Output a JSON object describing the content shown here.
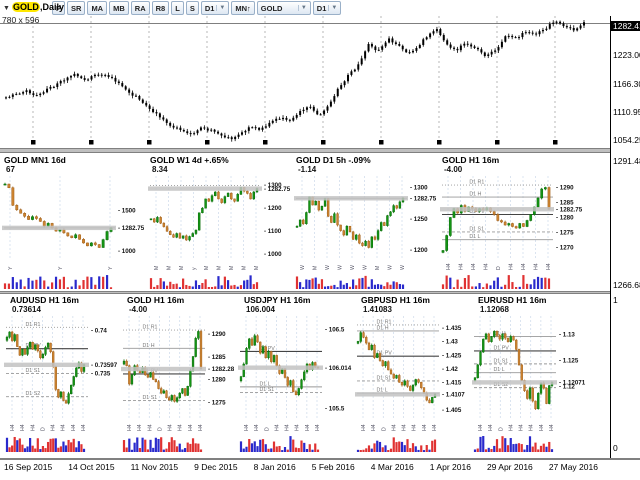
{
  "window": {
    "size_label": "780 x 596",
    "symbol_prefix": "▼",
    "symbol_label_hl": "GOLD",
    "symbol_label_rest": ",Daily"
  },
  "toolbar": {
    "buttons": [
      "P",
      "SR",
      "MA",
      "MB",
      "RA",
      "R8",
      "L",
      "S"
    ],
    "combos": [
      {
        "label": "D1",
        "arrow": true
      },
      {
        "label": "MN↑",
        "arrow": false
      },
      {
        "label": "GOLD",
        "arrow": true,
        "wide": true
      },
      {
        "label": "D1",
        "arrow": true
      }
    ]
  },
  "colors": {
    "up": "#149414",
    "up_stroke": "#0a6e0a",
    "down": "#cd8430",
    "down_stroke": "#a3621c",
    "vol_red": "#e03232",
    "vol_blue": "#2929cc",
    "grid": "#ccd9ea",
    "level": "#999999",
    "level_dark": "#444444",
    "band": "#c2c2c2",
    "highlight": "#ffe800",
    "bar": "#000000"
  },
  "main_chart": {
    "range": [
      1043,
      1293
    ],
    "current_label": "1282.41",
    "current_price": 1282.41,
    "scale_labels": [
      {
        "t": "1223.00",
        "p": 1223
      },
      {
        "t": "1166.30",
        "p": 1166.3
      },
      {
        "t": "1110.95",
        "p": 1110.95
      },
      {
        "t": "1054.25",
        "p": 1054.25
      }
    ],
    "closes": [
      1135,
      1142,
      1150,
      1138,
      1148,
      1160,
      1172,
      1180,
      1168,
      1178,
      1182,
      1170,
      1155,
      1140,
      1125,
      1108,
      1090,
      1078,
      1068,
      1062,
      1075,
      1070,
      1058,
      1054,
      1066,
      1078,
      1072,
      1085,
      1095,
      1090,
      1108,
      1118,
      1098,
      1120,
      1155,
      1180,
      1200,
      1240,
      1228,
      1252,
      1238,
      1222,
      1235,
      1258,
      1270,
      1240,
      1230,
      1244,
      1232,
      1218,
      1228,
      1260,
      1252,
      1266,
      1258,
      1272,
      1286,
      1276,
      1270,
      1282.41
    ]
  },
  "scale_extra": [
    "1291.487",
    "1266.683",
    "1",
    "0"
  ],
  "row1": [
    {
      "name": "gold-mn1",
      "title": "GOLD MN1 16d",
      "value": "67",
      "seed": 1,
      "range": [
        950,
        1870
      ],
      "closes": [
        1820,
        1775,
        1560,
        1505,
        1462,
        1425,
        1385,
        1420,
        1398,
        1362,
        1302,
        1338,
        1282,
        1244,
        1262,
        1222,
        1184,
        1162,
        1198,
        1142,
        1098,
        1062,
        1098,
        1078,
        1042,
        1138,
        1238,
        1283
      ],
      "levels": [
        {
          "label": "",
          "p": 1282.75,
          "style": "solid"
        }
      ],
      "price_labels": [
        {
          "t": "1500",
          "p": 1500
        },
        {
          "t": "1282.75",
          "p": 1282.75,
          "cur": true
        },
        {
          "t": "1000",
          "p": 1000
        }
      ],
      "xticks": [
        "Y",
        "Y",
        "Y"
      ]
    },
    {
      "name": "gold-w1",
      "title": "GOLD W1 4d +.65%",
      "value": "8.34",
      "seed": 2,
      "range": [
        995,
        1320
      ],
      "closes": [
        1152,
        1138,
        1158,
        1133,
        1118,
        1098,
        1083,
        1072,
        1088,
        1068,
        1078,
        1060,
        1075,
        1088,
        1103,
        1178,
        1198,
        1238,
        1228,
        1252,
        1268,
        1238,
        1222,
        1248,
        1263,
        1238,
        1228,
        1258,
        1288,
        1272,
        1262,
        1238,
        1268,
        1283
      ],
      "levels": [
        {
          "label": "",
          "p": 1296,
          "style": "dotted"
        }
      ],
      "price_labels": [
        {
          "t": "1300",
          "p": 1300
        },
        {
          "t": "1282.75",
          "p": 1282.75,
          "cur": true
        },
        {
          "t": "1200",
          "p": 1200
        },
        {
          "t": "1100",
          "p": 1100
        },
        {
          "t": "1000",
          "p": 1000
        }
      ],
      "xticks": [
        "M",
        "M",
        "M",
        "y",
        "M",
        "M",
        "M",
        "M",
        "M"
      ]
    },
    {
      "name": "gold-d1",
      "title": "GOLD D1 5h -.09%",
      "value": "-1.14",
      "seed": 3,
      "range": [
        1192,
        1312
      ],
      "closes": [
        1238,
        1248,
        1242,
        1260,
        1285,
        1272,
        1278,
        1264,
        1270,
        1282,
        1254,
        1244,
        1258,
        1240,
        1231,
        1224,
        1238,
        1229,
        1217,
        1224,
        1211,
        1207,
        1214,
        1204,
        1221,
        1217,
        1231,
        1244,
        1239,
        1255,
        1261,
        1271,
        1267,
        1277,
        1283
      ],
      "levels": [
        {
          "label": "",
          "p": 1282.75,
          "style": "solid"
        }
      ],
      "price_labels": [
        {
          "t": "1300",
          "p": 1300
        },
        {
          "t": "1282.75",
          "p": 1282.75,
          "cur": true
        },
        {
          "t": "1250",
          "p": 1250
        },
        {
          "t": "1200",
          "p": 1200
        }
      ],
      "xticks": [
        "W",
        "M",
        "W",
        "W",
        "W",
        "W",
        "M",
        "W",
        "W"
      ]
    },
    {
      "name": "gold-h1",
      "title": "GOLD H1 16m",
      "value": "-4.00",
      "seed": 4,
      "range": [
        1267.5,
        1292.5
      ],
      "closes": [
        1269,
        1274,
        1280,
        1283,
        1281.5,
        1284,
        1282,
        1283.5,
        1283,
        1282,
        1283,
        1282.5,
        1283.2,
        1282,
        1281,
        1279,
        1278.5,
        1277.5,
        1278,
        1277,
        1276.5,
        1278,
        1277,
        1279,
        1281,
        1283.5,
        1286.5,
        1289.5,
        1290,
        1282.75
      ],
      "levels": [
        {
          "label": "D1 R1",
          "p": 1290.8,
          "style": "dotted"
        },
        {
          "label": "D1 H",
          "p": 1286.8,
          "style": "solid"
        },
        {
          "label": "D1 PV",
          "p": 1281.0,
          "style": "solid",
          "dark": true
        },
        {
          "label": "D1 S1",
          "p": 1275.2,
          "style": "dashed"
        },
        {
          "label": "D1 L",
          "p": 1272.6,
          "style": "solid"
        }
      ],
      "price_labels": [
        {
          "t": "1290",
          "p": 1290
        },
        {
          "t": "1285",
          "p": 1285
        },
        {
          "t": "1282.75",
          "p": 1282.75,
          "cur": true
        },
        {
          "t": "1280",
          "p": 1280
        },
        {
          "t": "1275",
          "p": 1275
        },
        {
          "t": "1270",
          "p": 1270
        }
      ],
      "xticks": [
        "H4",
        "H4",
        "H4",
        "H4",
        "D",
        "H4",
        "H4",
        "H4",
        "H4"
      ]
    }
  ],
  "row2": [
    {
      "name": "audusd-h1",
      "title": "AUDUSD H1 16m",
      "value": "0.73614",
      "seed": 5,
      "range": [
        0.73,
        0.7412
      ],
      "closes": [
        0.7392,
        0.7398,
        0.7388,
        0.7395,
        0.7381,
        0.7371,
        0.7378,
        0.7372,
        0.738,
        0.7386,
        0.7378,
        0.7383,
        0.7376,
        0.7368,
        0.7372,
        0.738,
        0.7385,
        0.7375,
        0.7358,
        0.7331,
        0.7322,
        0.7328,
        0.7318,
        0.7315,
        0.7326,
        0.7336,
        0.7346,
        0.7356,
        0.7362,
        0.7352,
        0.736
      ],
      "levels": [
        {
          "label": "D1 R1",
          "p": 0.74035,
          "style": "dotted"
        },
        {
          "label": "D1 PV",
          "p": 0.73785,
          "style": "solid",
          "dark": true
        },
        {
          "label": "D1 S1",
          "p": 0.73495,
          "style": "dashed"
        },
        {
          "label": "D1 S2",
          "p": 0.73225,
          "style": "dashed"
        }
      ],
      "price_labels": [
        {
          "t": "0.74",
          "p": 0.74
        },
        {
          "t": "0.73597",
          "p": 0.73597,
          "cur": true
        },
        {
          "t": "0.735",
          "p": 0.735
        }
      ],
      "xticks": [
        "H4",
        "H4",
        "H4",
        "D",
        "H4",
        "H4",
        "H4",
        "H4"
      ]
    },
    {
      "name": "gold-h1-2",
      "title": "GOLD H1 16m",
      "value": "-4.00",
      "seed": 6,
      "range": [
        1272,
        1293
      ],
      "closes": [
        1284,
        1283,
        1279,
        1281,
        1283,
        1282,
        1281.5,
        1282.5,
        1281,
        1280.5,
        1281.5,
        1280,
        1279.5,
        1278,
        1277,
        1277.5,
        1276,
        1275.5,
        1276.5,
        1275.2,
        1276,
        1277,
        1278,
        1276.5,
        1278.5,
        1282,
        1285,
        1289,
        1290.5,
        1282.28
      ],
      "levels": [
        {
          "label": "D1 R1",
          "p": 1290.8,
          "style": "dotted"
        },
        {
          "label": "D1 H",
          "p": 1286.8,
          "style": "solid"
        },
        {
          "label": "D1 PV",
          "p": 1281.2,
          "style": "solid",
          "dark": true
        },
        {
          "label": "D1 S1",
          "p": 1275.4,
          "style": "dashed"
        }
      ],
      "price_labels": [
        {
          "t": "1290",
          "p": 1290
        },
        {
          "t": "1285",
          "p": 1285
        },
        {
          "t": "1282.28",
          "p": 1282.28,
          "cur": true
        },
        {
          "t": "1280",
          "p": 1280
        },
        {
          "t": "1275",
          "p": 1275
        }
      ],
      "xticks": [
        "H4",
        "H4",
        "H4",
        "D",
        "H4",
        "H4",
        "H4",
        "H4"
      ]
    },
    {
      "name": "usdjpy-h1",
      "title": "USDJPY H1 16m",
      "value": "106.004",
      "seed": 7,
      "range": [
        105.4,
        106.62
      ],
      "closes": [
        105.9,
        106.06,
        106.26,
        106.38,
        106.3,
        106.42,
        106.34,
        106.2,
        106.28,
        106.14,
        106.22,
        106.09,
        106.17,
        106.04,
        105.94,
        106.0,
        105.89,
        105.79,
        105.85,
        105.71,
        105.67,
        105.75,
        105.86,
        105.96,
        106.06,
        105.99,
        106.08,
        106.02,
        106.014
      ],
      "levels": [
        {
          "label": "D1 PV",
          "p": 106.22,
          "style": "solid",
          "dark": true
        },
        {
          "label": "D1 L",
          "p": 105.77,
          "style": "solid"
        },
        {
          "label": "D1 S1",
          "p": 105.7,
          "style": "dashed"
        }
      ],
      "price_labels": [
        {
          "t": "106.5",
          "p": 106.5
        },
        {
          "t": "106.014",
          "p": 106.014,
          "cur": true
        },
        {
          "t": "105.5",
          "p": 105.5
        }
      ],
      "xticks": [
        "H4",
        "H4",
        "D",
        "H4",
        "H4",
        "H4",
        "H4",
        "H4"
      ]
    },
    {
      "name": "gbpusd-h1",
      "title": "GBPUSD H1 16m",
      "value": "1.41083",
      "seed": 8,
      "range": [
        1.4028,
        1.4378
      ],
      "closes": [
        1.43,
        1.4332,
        1.4315,
        1.4294,
        1.427,
        1.4286,
        1.4241,
        1.4256,
        1.423,
        1.4211,
        1.4226,
        1.4196,
        1.4181,
        1.4166,
        1.4176,
        1.4151,
        1.4141,
        1.4156,
        1.4136,
        1.4121,
        1.4141,
        1.4161,
        1.4151,
        1.4131,
        1.4111,
        1.4086,
        1.4076,
        1.4096,
        1.4107
      ],
      "levels": [
        {
          "label": "D1 R1",
          "p": 1.436,
          "style": "dotted"
        },
        {
          "label": "D1 H",
          "p": 1.4338,
          "style": "solid"
        },
        {
          "label": "D1 PV",
          "p": 1.4246,
          "style": "solid",
          "dark": true
        },
        {
          "label": "D1 S1",
          "p": 1.4156,
          "style": "dashed"
        },
        {
          "label": "D1 L",
          "p": 1.4111,
          "style": "solid"
        }
      ],
      "price_labels": [
        {
          "t": "1.435",
          "p": 1.435
        },
        {
          "t": "1.43",
          "p": 1.43
        },
        {
          "t": "1.425",
          "p": 1.425
        },
        {
          "t": "1.42",
          "p": 1.42
        },
        {
          "t": "1.415",
          "p": 1.415
        },
        {
          "t": "1.4107",
          "p": 1.4107,
          "cur": true
        },
        {
          "t": "1.405",
          "p": 1.405
        }
      ],
      "xticks": [
        "H4",
        "H4",
        "D",
        "H4",
        "H4",
        "H4",
        "H4",
        "H4"
      ]
    },
    {
      "name": "eurusd-h1",
      "title": "EURUSD H1 16m",
      "value": "1.12068",
      "seed": 9,
      "range": [
        1.1142,
        1.1328
      ],
      "closes": [
        1.1216,
        1.1241,
        1.1266,
        1.1291,
        1.1301,
        1.1286,
        1.1296,
        1.1306,
        1.1298,
        1.1291,
        1.1301,
        1.1293,
        1.1286,
        1.1296,
        1.1289,
        1.1271,
        1.1241,
        1.1211,
        1.1191,
        1.1176,
        1.1196,
        1.1171,
        1.1156,
        1.1186,
        1.1206,
        1.1196,
        1.1166,
        1.1201,
        1.12071
      ],
      "levels": [
        {
          "label": "D1 H",
          "p": 1.1296,
          "style": "solid"
        },
        {
          "label": "D1 PV",
          "p": 1.1268,
          "style": "solid",
          "dark": true
        },
        {
          "label": "D1 S1",
          "p": 1.1243,
          "style": "dashed"
        },
        {
          "label": "D1 L",
          "p": 1.1226,
          "style": "solid"
        },
        {
          "label": "D1 S2",
          "p": 1.1197,
          "style": "dashed"
        }
      ],
      "price_labels": [
        {
          "t": "1.13",
          "p": 1.13
        },
        {
          "t": "1.125",
          "p": 1.125
        },
        {
          "t": "1.12071",
          "p": 1.12071,
          "cur": true
        },
        {
          "t": "1.12",
          "p": 1.12
        }
      ],
      "xticks": [
        "H4",
        "H4",
        "D",
        "H4",
        "H4",
        "H4",
        "H4",
        "H4"
      ]
    }
  ],
  "dates": [
    "16 Sep 2015",
    "14 Oct 2015",
    "11 Nov 2015",
    "9 Dec 2015",
    "8 Jan 2016",
    "5 Feb 2016",
    "4 Mar 2016",
    "1 Apr 2016",
    "29 Apr 2016",
    "27 May 2016"
  ]
}
